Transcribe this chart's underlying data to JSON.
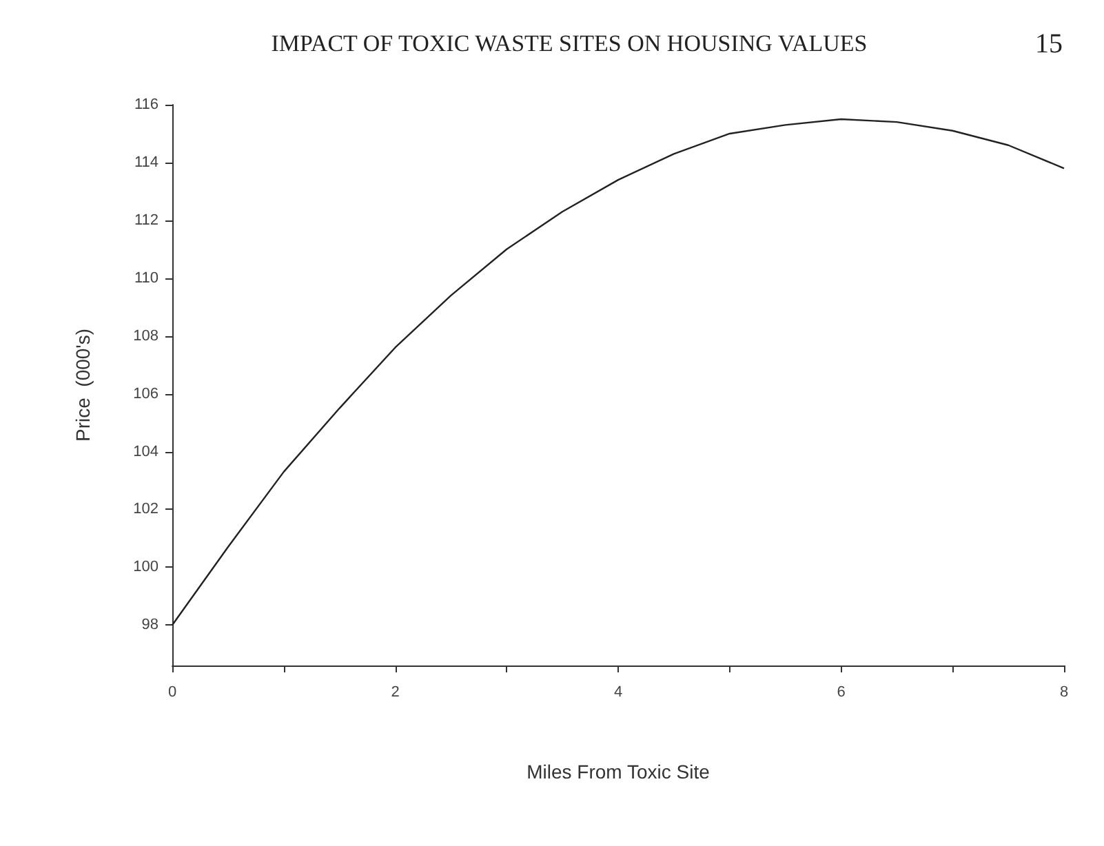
{
  "chart_data": {
    "type": "line",
    "title": "IMPACT OF TOXIC WASTE SITES ON HOUSING VALUES",
    "annotations": [
      "15"
    ],
    "xlabel": "Miles From Toxic Site",
    "ylabel": "Price  (000's)",
    "x": [
      0,
      0.5,
      1,
      1.5,
      2,
      2.5,
      3,
      3.5,
      4,
      4.5,
      5,
      5.5,
      6,
      6.5,
      7,
      7.5,
      8
    ],
    "series": [
      {
        "color": "#222222",
        "values": [
          98,
          100.7,
          103.3,
          105.5,
          107.6,
          109.4,
          111.0,
          112.3,
          113.4,
          114.3,
          115.0,
          115.3,
          115.5,
          115.4,
          115.1,
          114.6,
          113.8
        ]
      }
    ],
    "xlim": [
      0,
      8
    ],
    "xticks": [
      0,
      {
        "value": 1,
        "label": null
      },
      2,
      {
        "value": 3,
        "label": null
      },
      4,
      {
        "value": 5,
        "label": null
      },
      6,
      {
        "value": 7,
        "label": null
      },
      8
    ],
    "ylim": [
      96.6,
      116
    ],
    "yticks": [
      98,
      100,
      102,
      104,
      106,
      108,
      110,
      112,
      114,
      116
    ],
    "grid": false,
    "marker": "none",
    "line_style": "solid"
  }
}
